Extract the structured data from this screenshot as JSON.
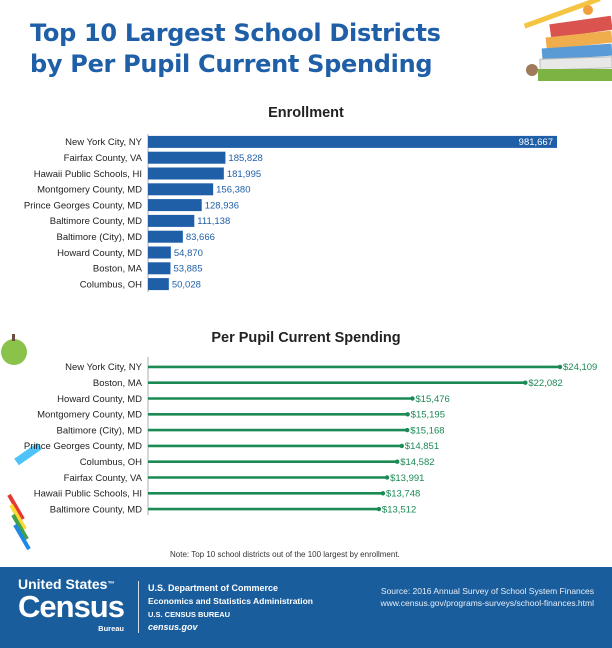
{
  "title_line1": "Top 10 Largest School Districts",
  "title_line2": "by Per Pupil Current Spending",
  "colors": {
    "title": "#1f5fa8",
    "enrollment_bar": "#1f5fa8",
    "spending_line": "#1b8a55",
    "footer": "#1a5d9c"
  },
  "chart_data": [
    {
      "type": "bar",
      "orientation": "horizontal",
      "title": "Enrollment",
      "categories": [
        "New York City, NY",
        "Fairfax County, VA",
        "Hawaii Public Schools, HI",
        "Montgomery County, MD",
        "Prince Georges County, MD",
        "Baltimore County, MD",
        "Baltimore (City), MD",
        "Howard County, MD",
        "Boston, MA",
        "Columbus, OH"
      ],
      "values": [
        981667,
        185828,
        181995,
        156380,
        128936,
        111138,
        83666,
        54870,
        53885,
        50028
      ],
      "labels": [
        "981,667",
        "185,828",
        "181,995",
        "156,380",
        "128,936",
        "111,138",
        "83,666",
        "54,870",
        "53,885",
        "50,028"
      ],
      "xlim": [
        0,
        981667
      ],
      "grid": false,
      "color": "#1f5fa8"
    },
    {
      "type": "bar",
      "orientation": "horizontal",
      "style": "lollipop",
      "title": "Per Pupil Current Spending",
      "categories": [
        "New York City, NY",
        "Boston, MA",
        "Howard County, MD",
        "Montgomery County, MD",
        "Baltimore (City), MD",
        "Prince Georges County, MD",
        "Columbus, OH",
        "Fairfax County, VA",
        "Hawaii Public Schools, HI",
        "Baltimore County, MD"
      ],
      "values": [
        24109,
        22082,
        15476,
        15195,
        15168,
        14851,
        14582,
        13991,
        13748,
        13512
      ],
      "labels": [
        "$24,109",
        "$22,082",
        "$15,476",
        "$15,195",
        "$15,168",
        "$14,851",
        "$14,582",
        "$13,991",
        "$13,748",
        "$13,512"
      ],
      "xlim": [
        0,
        24109
      ],
      "grid": false,
      "color": "#1b8a55"
    }
  ],
  "note": "Note: Top 10 school districts out of the 100 largest by enrollment.",
  "footer": {
    "logo_line1": "United States",
    "logo_tm": "™",
    "logo_line2": "Census",
    "logo_line3": "Bureau",
    "dept_line1": "U.S. Department of Commerce",
    "dept_line2": "Economics and Statistics Administration",
    "dept_line3": "U.S. CENSUS BUREAU",
    "dept_line4": "census.gov",
    "source_line1": "Source: 2016 Annual Survey of School System Finances",
    "source_line2": "www.census.gov/programs-surveys/school-finances.html"
  }
}
